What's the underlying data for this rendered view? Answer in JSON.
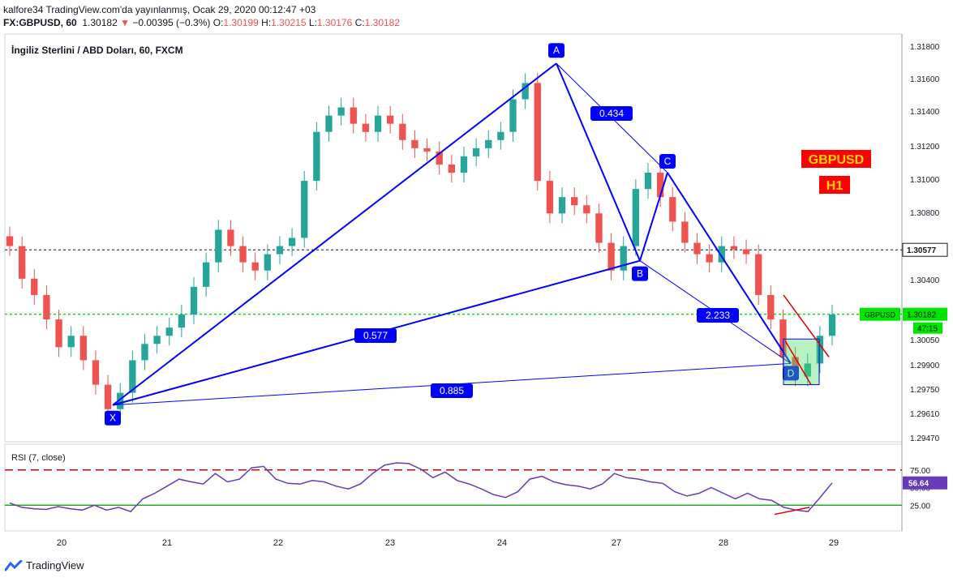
{
  "header": {
    "publisher_line": "kalfore34 TradingView.com'da yayınlanmış, Ocak 29, 2020 00:12:47 +03",
    "symbol": "FX:GBPUSD, 60",
    "last": "1.30182",
    "change": "−0.00395 (−0.3%)",
    "o_label": "O:",
    "o_value": "1.30199",
    "h_label": "H:",
    "h_value": "1.30215",
    "l_label": "L:",
    "l_value": "1.30176",
    "c_label": "C:",
    "c_value": "1.30182"
  },
  "footer": {
    "brand": "TradingView"
  },
  "chart_data": {
    "type": "candlestick",
    "title": "İngiliz Sterlini / ABD Doları, 60, FXCM",
    "ylim": [
      1.294,
      1.319
    ],
    "y_ticks": [
      "1.31800",
      "1.31600",
      "1.31400",
      "1.31200",
      "1.31000",
      "1.30800",
      "1.30400",
      "1.30050",
      "1.29900",
      "1.29750",
      "1.29610",
      "1.29470"
    ],
    "x_ticks": [
      "20",
      "21",
      "22",
      "23",
      "24",
      "27",
      "28",
      "29"
    ],
    "price_close_path": [
      1.306,
      1.304,
      1.303,
      1.3015,
      1.2998,
      1.3005,
      1.299,
      1.2975,
      1.296,
      1.297,
      1.299,
      1.3,
      1.3005,
      1.301,
      1.3018,
      1.3035,
      1.305,
      1.307,
      1.306,
      1.305,
      1.3045,
      1.3055,
      1.306,
      1.3065,
      1.31,
      1.313,
      1.314,
      1.3145,
      1.3135,
      1.313,
      1.314,
      1.3135,
      1.3125,
      1.312,
      1.3118,
      1.311,
      1.3105,
      1.3115,
      1.312,
      1.3125,
      1.313,
      1.315,
      1.316,
      1.31,
      1.308,
      1.309,
      1.3085,
      1.308,
      1.3062,
      1.3045,
      1.306,
      1.3095,
      1.3105,
      1.309,
      1.3075,
      1.3062,
      1.3055,
      1.305,
      1.306,
      1.3058,
      1.3055,
      1.303,
      1.3015,
      1.2992,
      1.298,
      1.2988,
      1.3005,
      1.3018
    ],
    "pattern_points": [
      {
        "label": "X",
        "price": 1.29625
      },
      {
        "label": "A",
        "price": 1.3172
      },
      {
        "label": "B",
        "price": 1.3051
      },
      {
        "label": "C",
        "price": 1.3105
      },
      {
        "label": "D",
        "price": 1.2988
      }
    ],
    "ratios": [
      "0.434",
      "0.577",
      "0.885",
      "2.233"
    ],
    "horizontal_levels": [
      {
        "price": 1.30577,
        "label": "1.30577",
        "color": "#131722"
      },
      {
        "price": 1.30182,
        "label": "1.30182",
        "color": "#00e600"
      }
    ],
    "current_price_tag": {
      "symbol": "GBPUSD",
      "value": "1.30182",
      "countdown": "47:15"
    },
    "annotations": [
      "GBPUSD",
      "H1"
    ],
    "rsi": {
      "label": "RSI (7, close)",
      "levels": [
        75.0,
        25.0
      ],
      "ticks": [
        "75.00",
        "50.00",
        "25.00"
      ],
      "current": "56.64",
      "values": [
        28,
        22,
        20,
        19,
        23,
        20,
        18,
        25,
        18,
        22,
        16,
        34,
        42,
        52,
        62,
        58,
        55,
        70,
        58,
        62,
        78,
        80,
        62,
        56,
        55,
        60,
        58,
        52,
        48,
        55,
        70,
        82,
        85,
        84,
        76,
        64,
        72,
        60,
        55,
        48,
        40,
        36,
        44,
        62,
        66,
        58,
        54,
        52,
        48,
        55,
        70,
        64,
        62,
        58,
        56,
        44,
        38,
        42,
        50,
        42,
        34,
        42,
        34,
        32,
        22,
        18,
        16,
        36,
        56.64
      ]
    }
  }
}
